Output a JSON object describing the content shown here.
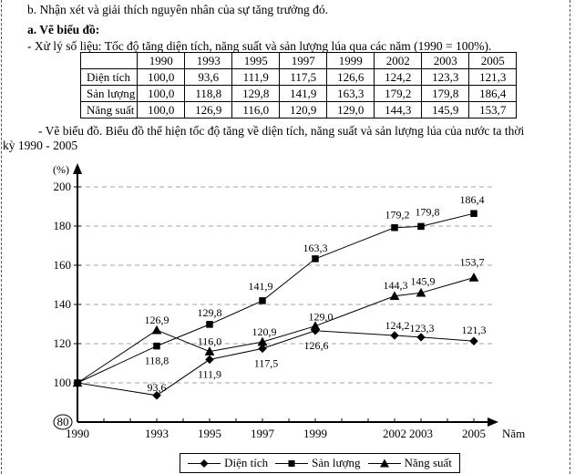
{
  "page": {
    "background": "#ffffff",
    "edge_border_color": "#555555"
  },
  "document": {
    "note_line": "b. Nhận xét và giải thích nguyên nhân của sự tăng trưởng đó.",
    "section_heading": "a. Vẽ biểu đồ:",
    "processing_line": "- Xử lý số liệu: Tốc độ tăng diện tích, năng suất và sản lượng lúa qua các năm (1990 = 100%).",
    "chart_caption_line1": "- Vẽ biểu đồ. Biểu đồ thể hiện tốc độ tăng về diện tích, năng suất và sản lượng lúa của nước ta thời",
    "chart_caption_line2": "kỳ 1990 - 2005"
  },
  "table": {
    "col_headers": [
      "",
      "1990",
      "1993",
      "1995",
      "1997",
      "1999",
      "2002",
      "2003",
      "2005"
    ],
    "rows": [
      {
        "label": "Diện tích",
        "values": [
          "100,0",
          "93,6",
          "111,9",
          "117,5",
          "126,6",
          "124,2",
          "123,3",
          "121,3"
        ]
      },
      {
        "label": "Sản lượng",
        "values": [
          "100,0",
          "118,8",
          "129,8",
          "141,9",
          "163,3",
          "179,2",
          "179,8",
          "186,4"
        ]
      },
      {
        "label": "Năng suất",
        "values": [
          "100,0",
          "126,9",
          "116,0",
          "120,9",
          "129,0",
          "144,3",
          "145,9",
          "153,7"
        ]
      }
    ]
  },
  "chart_data": {
    "type": "line",
    "title": "",
    "ylabel": "(%)",
    "xlabel": "Năm",
    "x": [
      1990,
      1993,
      1995,
      1997,
      1999,
      2002,
      2003,
      2005
    ],
    "x_range": [
      1990,
      2005
    ],
    "ylim": [
      80,
      200
    ],
    "ytick_step": 20,
    "circled_ytick": "80",
    "grid": "dashed-horizontal",
    "legend_position": "bottom",
    "line_color": "#000000",
    "grid_color": "#a3a3a3",
    "series": [
      {
        "name": "Diện tích",
        "marker": "diamond",
        "color": "#000000",
        "values": [
          100.0,
          93.6,
          111.9,
          117.5,
          126.6,
          124.2,
          123.3,
          121.3
        ],
        "point_labels": [
          "",
          "93,6",
          "111,9",
          "117,5",
          "126,6",
          "124,2",
          "123,3",
          "121,3"
        ],
        "label_offsets": [
          [
            0,
            0
          ],
          [
            0,
            -5
          ],
          [
            0,
            20
          ],
          [
            4,
            20
          ],
          [
            1,
            20
          ],
          [
            3,
            -7
          ],
          [
            1,
            -6
          ],
          [
            0,
            -8
          ]
        ]
      },
      {
        "name": "Sản lượng",
        "marker": "square",
        "color": "#000000",
        "values": [
          100.0,
          118.8,
          129.8,
          141.9,
          163.3,
          179.2,
          179.8,
          186.4
        ],
        "point_labels": [
          "",
          "118,8",
          "129,8",
          "141,9",
          "163,3",
          "179,2",
          "179,8",
          "186,4"
        ],
        "label_offsets": [
          [
            0,
            0
          ],
          [
            0,
            20
          ],
          [
            0,
            -9
          ],
          [
            -2,
            -12
          ],
          [
            0,
            -8
          ],
          [
            3,
            -10
          ],
          [
            7,
            -12
          ],
          [
            -2,
            -11
          ]
        ]
      },
      {
        "name": "Năng suất",
        "marker": "triangle",
        "color": "#000000",
        "values": [
          100.0,
          126.9,
          116.0,
          120.9,
          129.0,
          144.3,
          145.9,
          153.7
        ],
        "point_labels": [
          "",
          "126,9",
          "116,0",
          "120,9",
          "129,0",
          "144,3",
          "145,9",
          "153,7"
        ],
        "label_offsets": [
          [
            0,
            0
          ],
          [
            0,
            -7
          ],
          [
            0,
            -7
          ],
          [
            2,
            -7
          ],
          [
            6,
            -6
          ],
          [
            1,
            -8
          ],
          [
            2,
            -9
          ],
          [
            -2,
            -13
          ]
        ]
      }
    ]
  }
}
